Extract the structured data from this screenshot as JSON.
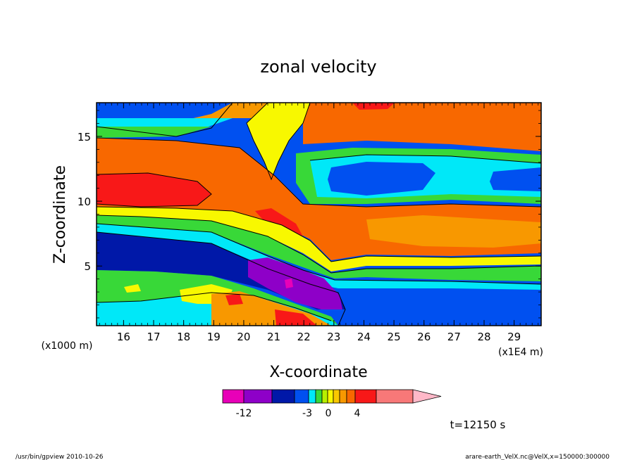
{
  "chart_data": {
    "type": "heatmap",
    "title": "zonal velocity",
    "xlabel": "X-coordinate",
    "ylabel": "Z-coordinate",
    "x_unit_left": "(x1000 m)",
    "x_unit_right": "(x1E4 m)",
    "xlim": [
      15.1,
      29.9
    ],
    "ylim": [
      0.4,
      17.6
    ],
    "xticks": [
      "16",
      "17",
      "18",
      "19",
      "20",
      "21",
      "22",
      "23",
      "24",
      "25",
      "26",
      "27",
      "28",
      "29"
    ],
    "yticks": [
      "5",
      "10",
      "15"
    ],
    "colorbar": {
      "labels": [
        "-12",
        "-3",
        "0",
        "4"
      ],
      "colors": [
        "#e800b8",
        "#8e00c8",
        "#0018a8",
        "#0050f0",
        "#00e8f8",
        "#38d838",
        "#b8f000",
        "#f8f800",
        "#f8c800",
        "#f89800",
        "#f86800",
        "#f81818",
        "#f87878",
        "#ffb8c8"
      ]
    },
    "time_label": "t=12150 s",
    "footer_left": "/usr/bin/gpview   2010-10-26",
    "footer_right": "arare-earth_VelX.nc@VelX,x=150000:300000"
  }
}
